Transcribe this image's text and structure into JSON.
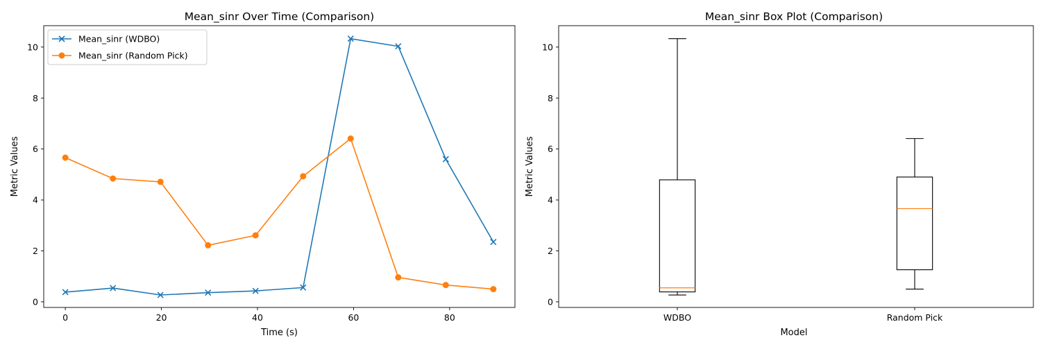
{
  "chart_data": [
    {
      "type": "line",
      "title": "Mean_sinr Over Time (Comparison)",
      "xlabel": "Time (s)",
      "ylabel": "Metric Values",
      "x": [
        0,
        9.9,
        19.8,
        29.7,
        39.6,
        49.5,
        59.4,
        69.3,
        79.2,
        89.1
      ],
      "xlim": [
        -4.5,
        93.6
      ],
      "ylim": [
        -0.22,
        10.84
      ],
      "xticks": [
        0,
        20,
        40,
        60,
        80
      ],
      "yticks": [
        0,
        2,
        4,
        6,
        8,
        10
      ],
      "legend_position": "upper-left",
      "series": [
        {
          "name": "Mean_sinr (WDBO)",
          "color": "#1f77b4",
          "marker": "x",
          "values": [
            0.38,
            0.54,
            0.27,
            0.36,
            0.43,
            0.56,
            10.33,
            10.03,
            5.6,
            2.35
          ]
        },
        {
          "name": "Mean_sinr (Random Pick)",
          "color": "#ff7f0e",
          "marker": "o",
          "values": [
            5.66,
            4.84,
            4.71,
            2.22,
            2.61,
            4.93,
            6.41,
            0.96,
            0.66,
            0.5
          ]
        }
      ]
    },
    {
      "type": "box",
      "title": "Mean_sinr Box Plot (Comparison)",
      "xlabel": "Model",
      "ylabel": "Metric Values",
      "categories": [
        "WDBO",
        "Random Pick"
      ],
      "ylim": [
        -0.22,
        10.84
      ],
      "yticks": [
        0,
        2,
        4,
        6,
        8,
        10
      ],
      "median_color": "#ff7f0e",
      "boxes": [
        {
          "whisker_low": 0.27,
          "q1": 0.39,
          "median": 0.55,
          "q3": 4.79,
          "whisker_high": 10.33
        },
        {
          "whisker_low": 0.5,
          "q1": 1.26,
          "median": 3.66,
          "q3": 4.9,
          "whisker_high": 6.41
        }
      ]
    }
  ]
}
